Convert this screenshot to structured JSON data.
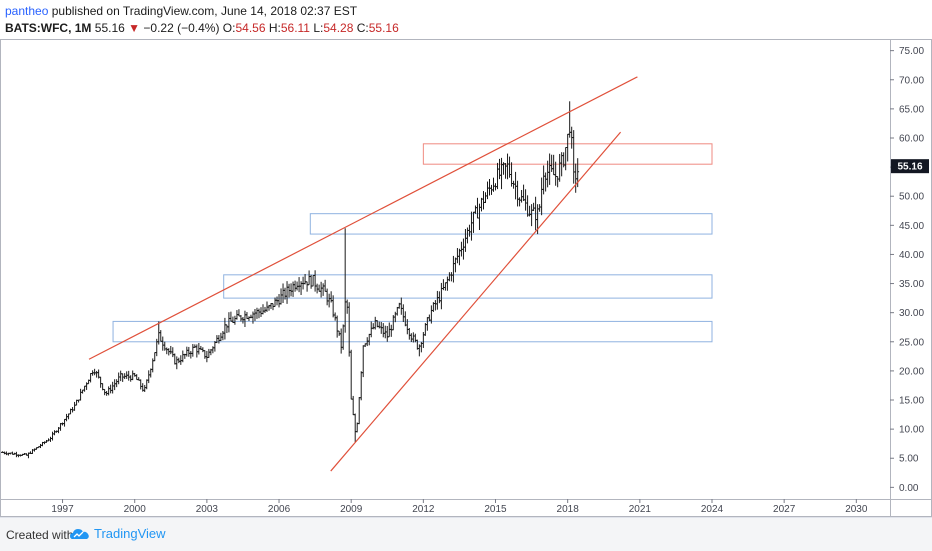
{
  "header": {
    "author": "pantheo",
    "published": " published on TradingView.com, June 14, 2018 02:37 EST",
    "symbol": "BATS:WFC, 1M",
    "last": "55.16",
    "arrow": "▼",
    "change": "−0.22 (−0.4%)",
    "o_label": "O:",
    "o_value": "54.56",
    "h_label": "H:",
    "h_value": "56.11",
    "l_label": "L:",
    "l_value": "54.28",
    "c_label": "C:",
    "c_value": "55.16"
  },
  "footer": {
    "created": "Created with",
    "brand": "TradingView"
  },
  "colors": {
    "trendline": "#e0503a",
    "zone_red": "#ef8a80",
    "zone_blue": "#8fb2e0",
    "price_tag": "#131722",
    "bar": "#1a1a1a"
  },
  "chart_data": {
    "type": "ohlc",
    "x_ticks": [
      "1997",
      "2000",
      "2003",
      "2006",
      "2009",
      "2012",
      "2015",
      "2018",
      "2021",
      "2024",
      "2027",
      "2030"
    ],
    "y_ticks": [
      "75.00",
      "70.00",
      "65.00",
      "60.00",
      "55.00",
      "50.00",
      "45.00",
      "40.00",
      "35.00",
      "30.00",
      "25.00",
      "20.00",
      "15.00",
      "10.00",
      "5.00",
      "0.00"
    ],
    "ylim": [
      -2,
      77
    ],
    "xlim": [
      1994.4,
      2031.4
    ],
    "last_price": "55.16",
    "price_path": [
      [
        1994.5,
        6.0
      ],
      [
        1995.5,
        5.5
      ],
      [
        1996.5,
        8.5
      ],
      [
        1997.5,
        14.0
      ],
      [
        1998.3,
        20.5
      ],
      [
        1998.8,
        16.0
      ],
      [
        1999.4,
        19.0
      ],
      [
        2000.0,
        19.0
      ],
      [
        2000.4,
        16.5
      ],
      [
        2001.0,
        26.0
      ],
      [
        2001.7,
        21.5
      ],
      [
        2002.5,
        24.0
      ],
      [
        2003.0,
        22.5
      ],
      [
        2003.8,
        28.0
      ],
      [
        2004.5,
        29.5
      ],
      [
        2005.5,
        30.5
      ],
      [
        2006.3,
        33.5
      ],
      [
        2006.8,
        35.5
      ],
      [
        2007.4,
        35.5
      ],
      [
        2007.9,
        33.5
      ],
      [
        2008.2,
        31.0
      ],
      [
        2008.6,
        24.0
      ],
      [
        2008.8,
        34.0
      ],
      [
        2009.0,
        15.0
      ],
      [
        2009.2,
        8.5
      ],
      [
        2009.5,
        24.5
      ],
      [
        2010.0,
        28.0
      ],
      [
        2010.5,
        26.0
      ],
      [
        2011.0,
        31.0
      ],
      [
        2011.5,
        26.0
      ],
      [
        2011.8,
        24.0
      ],
      [
        2012.3,
        30.0
      ],
      [
        2012.9,
        34.5
      ],
      [
        2013.5,
        40.5
      ],
      [
        2014.0,
        45.5
      ],
      [
        2014.5,
        49.5
      ],
      [
        2015.0,
        53.0
      ],
      [
        2015.5,
        55.0
      ],
      [
        2016.0,
        50.0
      ],
      [
        2016.5,
        47.0
      ],
      [
        2016.8,
        47.0
      ],
      [
        2017.0,
        54.5
      ],
      [
        2017.5,
        53.5
      ],
      [
        2017.8,
        56.0
      ],
      [
        2018.0,
        60.0
      ],
      [
        2018.1,
        63.0
      ],
      [
        2018.25,
        53.0
      ],
      [
        2018.45,
        54.7
      ]
    ],
    "trendlines": [
      {
        "x1": 1998.1,
        "y1": 22.0,
        "x2": 2020.9,
        "y2": 70.5
      },
      {
        "x1": 2008.15,
        "y1": 2.8,
        "x2": 2020.2,
        "y2": 61.0
      }
    ],
    "zones": [
      {
        "x1": 2012.0,
        "x2": 2024.0,
        "y1": 55.5,
        "y2": 59.0,
        "color": "red"
      },
      {
        "x1": 2007.3,
        "x2": 2024.0,
        "y1": 43.5,
        "y2": 47.0,
        "color": "blue"
      },
      {
        "x1": 2003.7,
        "x2": 2024.0,
        "y1": 32.5,
        "y2": 36.5,
        "color": "blue"
      },
      {
        "x1": 1999.1,
        "x2": 2024.0,
        "y1": 25.0,
        "y2": 28.5,
        "color": "blue"
      }
    ]
  }
}
